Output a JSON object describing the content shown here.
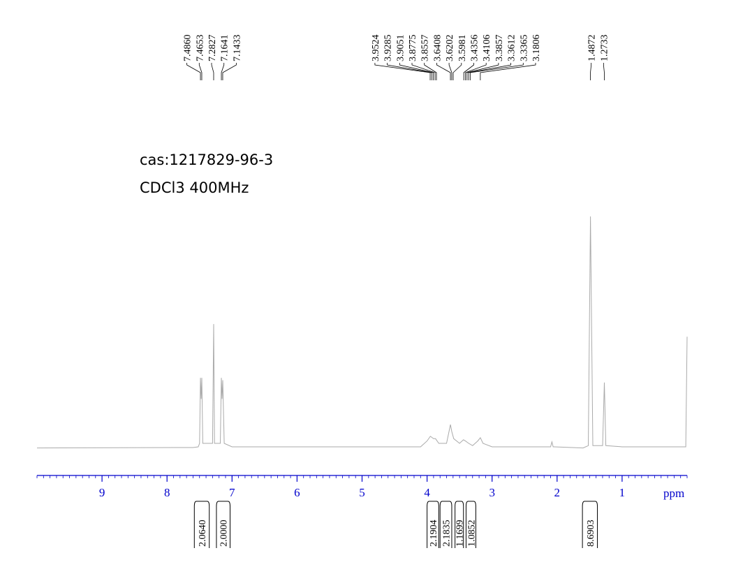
{
  "chart_data": {
    "type": "nmr",
    "annotations": [
      "cas:1217829-96-3",
      "CDCl3 400MHz"
    ],
    "x_label": "ppm",
    "xlim": [
      10,
      0
    ],
    "xticks": [
      9,
      8,
      7,
      6,
      5,
      4,
      3,
      2,
      1
    ],
    "minor_tick_step": 0.1,
    "ylim": [
      0,
      100
    ],
    "line_color": "#aaaaaa",
    "axis_color": "#0000cc",
    "peak_labels": [
      {
        "value": 7.486,
        "label": "7.4860"
      },
      7.4653,
      7.2827,
      7.1641,
      7.1433,
      3.9524,
      3.9285,
      3.9051,
      3.8775,
      3.8557,
      3.6408,
      3.6202,
      3.5981,
      3.4356,
      3.4106,
      3.3857,
      3.3612,
      3.3365,
      3.1806,
      1.4872,
      1.2733
    ],
    "integrals": [
      {
        "range": [
          7.58,
          7.35
        ],
        "value": {
          "value": 2.064,
          "label": "2.0640"
        }
      },
      {
        "range": [
          7.24,
          7.03
        ],
        "value": {
          "value": 2,
          "label": "2.0000"
        }
      },
      {
        "range": [
          4.0,
          3.82
        ],
        "value": 2.1904
      },
      {
        "range": [
          3.8,
          3.62
        ],
        "value": 2.1835
      },
      {
        "range": [
          3.57,
          3.44
        ],
        "value": 1.1699
      },
      {
        "range": [
          3.4,
          3.25
        ],
        "value": 1.0852
      },
      {
        "range": [
          1.61,
          1.38
        ],
        "value": 8.6903
      }
    ],
    "x": [
      10,
      7.6,
      7.52,
      7.5,
      7.486,
      7.475,
      7.465,
      7.45,
      7.3,
      7.283,
      7.27,
      7.18,
      7.164,
      7.154,
      7.143,
      7.12,
      7.0,
      4.1,
      4.0,
      3.95,
      3.9,
      3.87,
      3.82,
      3.7,
      3.64,
      3.62,
      3.59,
      3.5,
      3.44,
      3.41,
      3.36,
      3.3,
      3.22,
      3.18,
      3.14,
      3.0,
      2.1,
      2.08,
      2.06,
      2.04,
      1.6,
      1.52,
      1.487,
      1.45,
      1.3,
      1.273,
      1.25,
      1.0,
      0.02,
      0
    ],
    "values": [
      1,
      1.2,
      1.5,
      3,
      31,
      22,
      31,
      3,
      3,
      54,
      3,
      3,
      31,
      22,
      30,
      3,
      1.5,
      1.5,
      4,
      6,
      5,
      5,
      3,
      3,
      11,
      8,
      5,
      3,
      4.5,
      4,
      3,
      2,
      4,
      5.4,
      3,
      1.5,
      1.5,
      3.6,
      1.5,
      1.5,
      1,
      2,
      100,
      2,
      2,
      29,
      2,
      1.5,
      1.5,
      48.6
    ]
  }
}
